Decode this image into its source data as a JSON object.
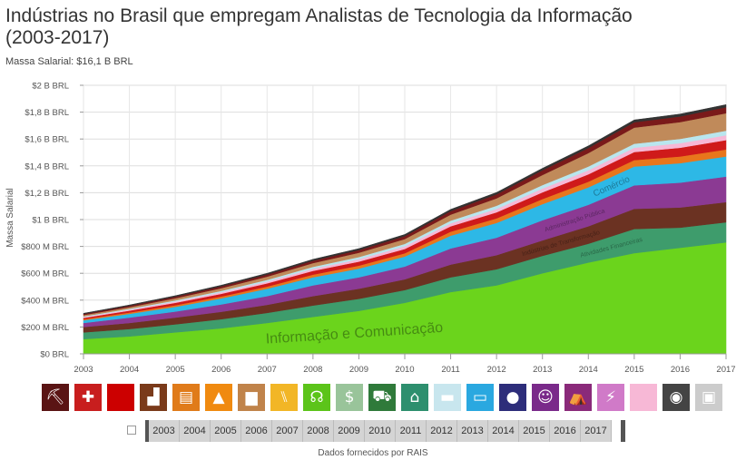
{
  "title": "Indústrias no Brasil que empregam Analistas de Tecnologia da Informação (2003-2017)",
  "subtitle": "Massa Salarial: $16,1 B BRL",
  "source_note": "Dados fornecidos por RAIS",
  "chart_data": {
    "type": "area",
    "stacked": true,
    "x": [
      2003,
      2004,
      2005,
      2006,
      2007,
      2008,
      2009,
      2010,
      2011,
      2012,
      2013,
      2014,
      2015,
      2016,
      2017
    ],
    "ylabel": "Massa Salarial",
    "xlabel": "",
    "ylim": [
      0,
      2000000000
    ],
    "yticks": [
      0,
      200000000,
      400000000,
      600000000,
      800000000,
      1000000000,
      1200000000,
      1400000000,
      1600000000,
      1800000000,
      2000000000
    ],
    "ytick_labels": [
      "$0 BRL",
      "$200 M BRL",
      "$400 M BRL",
      "$600 M BRL",
      "$800 M BRL",
      "$1 B BRL",
      "$1,2 B BRL",
      "$1,4 B BRL",
      "$1,6 B BRL",
      "$1,8 B BRL",
      "$2 B BRL"
    ],
    "grid": true,
    "series": [
      {
        "name": "Informação e Comunicação",
        "color": "#6bd41c",
        "values": [
          110,
          130,
          160,
          190,
          230,
          275,
          320,
          380,
          460,
          510,
          600,
          680,
          750,
          790,
          830
        ]
      },
      {
        "name": "Atividades Financeiras",
        "color": "#3e9c6c",
        "values": [
          50,
          55,
          60,
          68,
          75,
          85,
          90,
          95,
          110,
          120,
          130,
          140,
          180,
          150,
          150
        ]
      },
      {
        "name": "Indústrias de Transformação",
        "color": "#6b3222",
        "values": [
          40,
          45,
          50,
          55,
          60,
          70,
          75,
          80,
          95,
          105,
          115,
          130,
          150,
          150,
          150
        ]
      },
      {
        "name": "Administração Pública",
        "color": "#8b3a93",
        "values": [
          30,
          40,
          45,
          55,
          65,
          80,
          85,
          95,
          120,
          130,
          150,
          160,
          175,
          185,
          190
        ]
      },
      {
        "name": "Comércio",
        "color": "#2db8e6",
        "values": [
          20,
          28,
          35,
          45,
          55,
          60,
          65,
          75,
          95,
          110,
          120,
          130,
          140,
          145,
          150
        ]
      },
      {
        "name": "",
        "color": "#e8761c",
        "values": [
          8,
          10,
          12,
          14,
          16,
          20,
          22,
          24,
          30,
          34,
          38,
          42,
          48,
          50,
          52
        ]
      },
      {
        "name": "",
        "color": "#cf1a1a",
        "values": [
          10,
          14,
          18,
          20,
          24,
          28,
          30,
          32,
          40,
          45,
          50,
          55,
          60,
          65,
          70
        ]
      },
      {
        "name": "",
        "color": "#f7b8d6",
        "values": [
          6,
          8,
          10,
          12,
          14,
          16,
          18,
          20,
          22,
          25,
          28,
          30,
          32,
          34,
          36
        ]
      },
      {
        "name": "",
        "color": "#b9e6ee",
        "values": [
          5,
          6,
          8,
          10,
          12,
          14,
          16,
          18,
          20,
          24,
          26,
          28,
          30,
          32,
          34
        ]
      },
      {
        "name": "",
        "color": "#c08a5a",
        "values": [
          10,
          12,
          16,
          20,
          24,
          28,
          32,
          36,
          45,
          55,
          75,
          100,
          120,
          125,
          130
        ]
      },
      {
        "name": "",
        "color": "#7a1a1a",
        "values": [
          8,
          10,
          12,
          14,
          16,
          18,
          20,
          22,
          26,
          30,
          35,
          38,
          40,
          42,
          45
        ]
      },
      {
        "name": "",
        "color": "#333333",
        "values": [
          5,
          6,
          7,
          8,
          9,
          10,
          11,
          12,
          13,
          14,
          15,
          16,
          17,
          18,
          19
        ]
      }
    ],
    "value_unit_multiplier": 1000000,
    "area_labels": [
      {
        "series": "Informação e Comunicação",
        "text": "Informação e Comunicação",
        "at_year": 2008.9,
        "size": 16
      },
      {
        "series": "Atividades Financeiras",
        "text": "Atividades Financeiras",
        "at_year": 2014.5,
        "size": 7
      },
      {
        "series": "Indústrias de Transformação",
        "text": "Indústrias de Transformação",
        "at_year": 2013.4,
        "size": 7
      },
      {
        "series": "Administração Pública",
        "text": "Administração Pública",
        "at_year": 2013.7,
        "size": 7
      },
      {
        "series": "Comércio",
        "text": "Comércio",
        "at_year": 2014.5,
        "size": 10
      }
    ]
  },
  "industry_icons": [
    {
      "icon": "pickaxe-icon",
      "glyph": "⛏",
      "color": "#5a1414"
    },
    {
      "icon": "health-cross-icon",
      "glyph": "✚",
      "color": "#c81e1e"
    },
    {
      "icon": "blank-icon",
      "glyph": "",
      "color": "#cc0000"
    },
    {
      "icon": "factory-icon",
      "glyph": "▟",
      "color": "#7a3a1a"
    },
    {
      "icon": "book-icon",
      "glyph": "▤",
      "color": "#e07b1a"
    },
    {
      "icon": "traffic-cone-icon",
      "glyph": "▲",
      "color": "#f08a10"
    },
    {
      "icon": "podium-icon",
      "glyph": "▆",
      "color": "#c0834a"
    },
    {
      "icon": "utensils-icon",
      "glyph": "⑊",
      "color": "#f2b626"
    },
    {
      "icon": "antenna-icon",
      "glyph": "☊",
      "color": "#5cc41a"
    },
    {
      "icon": "money-house-icon",
      "glyph": "$",
      "color": "#99c49a"
    },
    {
      "icon": "tractor-icon",
      "glyph": "⛟",
      "color": "#2f7a3a"
    },
    {
      "icon": "bank-icon",
      "glyph": "⌂",
      "color": "#2d8f6e"
    },
    {
      "icon": "truck-icon",
      "glyph": "▬",
      "color": "#c8e6ee"
    },
    {
      "icon": "store-icon",
      "glyph": "▭",
      "color": "#2aa8e0"
    },
    {
      "icon": "water-drop-icon",
      "glyph": "●",
      "color": "#2d2d7a"
    },
    {
      "icon": "theater-masks-icon",
      "glyph": "☺",
      "color": "#7a2a8a"
    },
    {
      "icon": "tent-icon",
      "glyph": "⛺",
      "color": "#8a2a7a"
    },
    {
      "icon": "lightning-icon",
      "glyph": "⚡",
      "color": "#d07ac8"
    },
    {
      "icon": "blank-pink-icon",
      "glyph": "",
      "color": "#f7b8d6"
    },
    {
      "icon": "globe-icon",
      "glyph": "◉",
      "color": "#444444"
    },
    {
      "icon": "box-icon",
      "glyph": "▣",
      "color": "#cccccc"
    }
  ],
  "timeline": {
    "years": [
      "2003",
      "2004",
      "2005",
      "2006",
      "2007",
      "2008",
      "2009",
      "2010",
      "2011",
      "2012",
      "2013",
      "2014",
      "2015",
      "2016",
      "2017"
    ]
  }
}
